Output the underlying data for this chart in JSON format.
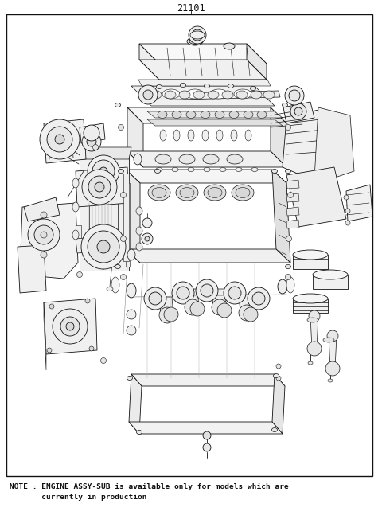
{
  "title": "21101",
  "note_line1": "NOTE : ENGINE ASSY-SUB is available only for models which are",
  "note_line2": "       currently in production",
  "bg_color": "#ffffff",
  "border_color": "#000000",
  "text_color": "#000000",
  "fig_width": 4.8,
  "fig_height": 6.57,
  "dpi": 100,
  "title_fontsize": 8.5,
  "note_fontsize": 6.8,
  "lw": 0.6,
  "ec": "#111111",
  "fc": "#ffffff",
  "fc_light": "#f5f5f5"
}
